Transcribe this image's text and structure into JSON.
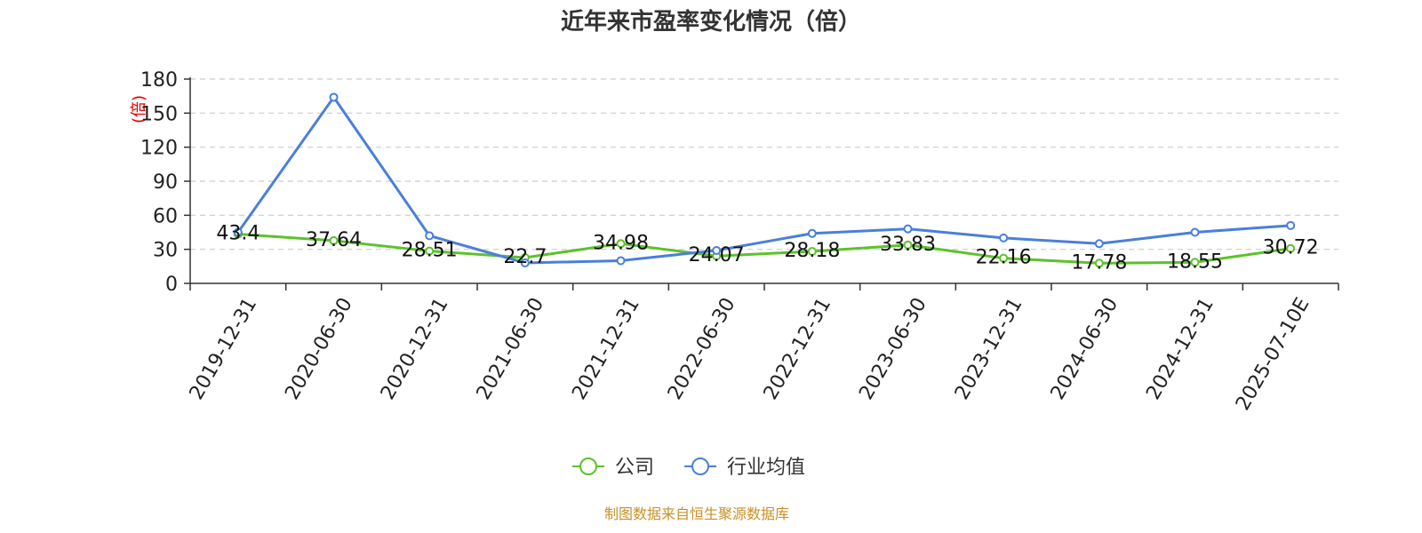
{
  "chart_data": {
    "type": "line",
    "title": "近年来市盈率变化情况（倍）",
    "ylabel": "(倍)",
    "xlabel": "",
    "ylim": [
      0,
      180
    ],
    "yticks": [
      0,
      30,
      60,
      90,
      120,
      150,
      180
    ],
    "grid": true,
    "legend_position": "bottom",
    "categories": [
      "2019-12-31",
      "2020-06-30",
      "2020-12-31",
      "2021-06-30",
      "2021-12-31",
      "2022-06-30",
      "2022-12-31",
      "2023-06-30",
      "2023-12-31",
      "2024-06-30",
      "2024-12-31",
      "2025-07-10E"
    ],
    "series": [
      {
        "name": "公司",
        "color": "#5cc22a",
        "show_labels": true,
        "values": [
          43.4,
          37.64,
          28.51,
          22.7,
          34.98,
          24.07,
          28.18,
          33.83,
          22.16,
          17.78,
          18.55,
          30.72
        ],
        "labels": [
          "43.4",
          "37.64",
          "28.51",
          "22.7",
          "34.98",
          "24.07",
          "28.18",
          "33.83",
          "22.16",
          "17.78",
          "18.55",
          "30.72"
        ]
      },
      {
        "name": "行业均值",
        "color": "#4a7fdc",
        "show_labels": false,
        "values": [
          45,
          164,
          42,
          18,
          20,
          29,
          44,
          48,
          40,
          35,
          45,
          51
        ]
      }
    ]
  },
  "source": "制图数据来自恒生聚源数据库"
}
